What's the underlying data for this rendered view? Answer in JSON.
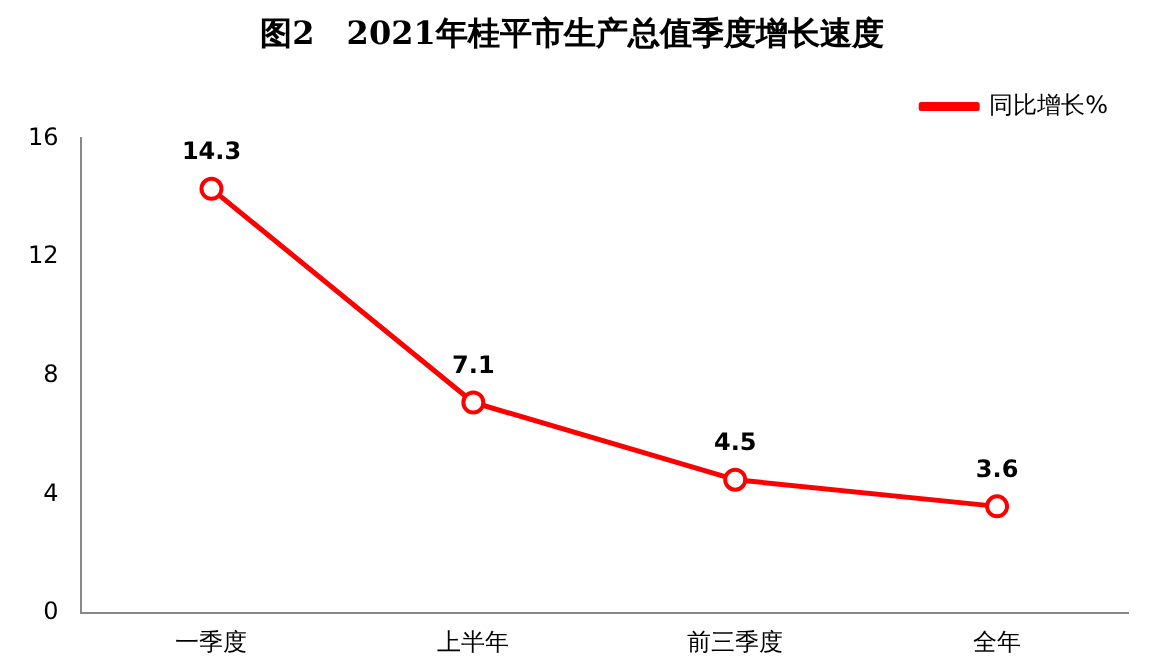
{
  "chart_data": {
    "type": "line",
    "title": "图2　2021年桂平市生产总值季度增长速度",
    "categories": [
      "一季度",
      "上半年",
      "前三季度",
      "全年"
    ],
    "series": [
      {
        "name": "同比增长%",
        "color": "#ff0000",
        "values": [
          14.3,
          7.1,
          4.5,
          3.6
        ]
      }
    ],
    "ylim": [
      0,
      16
    ],
    "yticks": [
      0,
      4,
      8,
      12,
      16
    ],
    "grid": false,
    "legend": "top right",
    "marker": "circle",
    "line_style": "solid",
    "data_labels": true
  }
}
